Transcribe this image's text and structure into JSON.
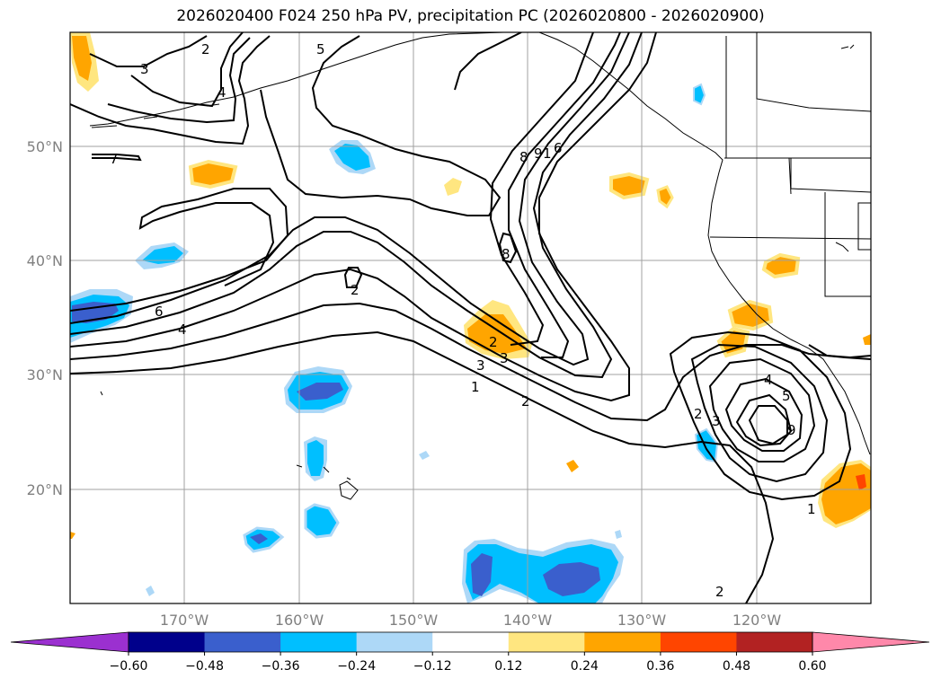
{
  "title": "2026020400 F024 250 hPa PV, precipitation PC (2026020800 - 2026020900)",
  "colors": {
    "coast": "#000000",
    "grid": "#a0a0a0",
    "axis_text": "#808080",
    "contour": "#000000"
  },
  "chart_data": {
    "type": "heatmap",
    "title": "2026020400 F024 250 hPa PV, precipitation PC (2026020800 - 2026020900)",
    "x_axis": {
      "ticks": [
        "170°W",
        "160°W",
        "150°W",
        "140°W",
        "130°W",
        "120°W"
      ],
      "range_deg": [
        -180,
        -110
      ]
    },
    "y_axis": {
      "ticks": [
        "20°N",
        "30°N",
        "40°N",
        "50°N"
      ],
      "range_deg": [
        10,
        60
      ]
    },
    "grid": true,
    "colorbar": {
      "orientation": "horizontal",
      "extend": "both",
      "tick_labels": [
        "−0.60",
        "−0.48",
        "−0.36",
        "−0.24",
        "−0.12",
        "0.12",
        "0.24",
        "0.36",
        "0.48",
        "0.60"
      ],
      "colors": [
        "#9b30d0",
        "#00008b",
        "#3a5fcd",
        "#00bfff",
        "#add8f7",
        "#ffffff",
        "#ffe680",
        "#ffa500",
        "#ff4500",
        "#b22222",
        "#ff88aa"
      ]
    },
    "contour_labels": [
      "2",
      "3",
      "4",
      "5",
      "6",
      "7",
      "8",
      "9",
      "1",
      "2",
      "6",
      "4",
      "2",
      "3",
      "3",
      "1",
      "2",
      "8",
      "4",
      "5",
      "3",
      "2",
      "9",
      "1",
      "2"
    ]
  }
}
